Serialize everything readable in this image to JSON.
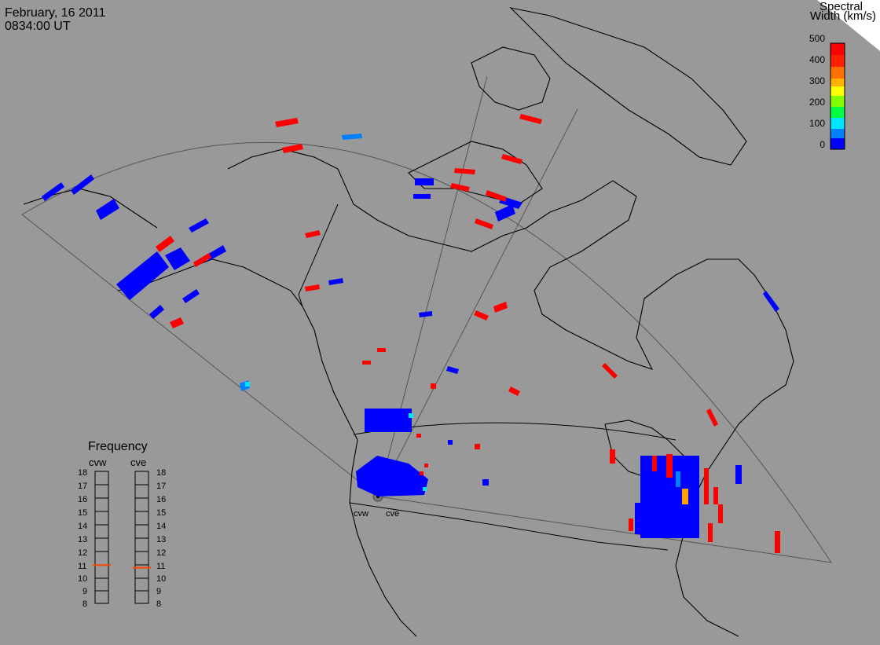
{
  "header": {
    "date": "February, 16 2011",
    "time": "0834:00 UT"
  },
  "scale": {
    "title_line1": "Spectral",
    "title_line2": "Width (km/s)",
    "ticks": [
      "500",
      "400",
      "300",
      "200",
      "100",
      "0"
    ],
    "colors": [
      "#0000ff",
      "#0080ff",
      "#00e5ff",
      "#00ff66",
      "#80ff00",
      "#ffff00",
      "#ffa000",
      "#ff4000",
      "#ff0000"
    ]
  },
  "frequency": {
    "title": "Frequency",
    "radars": [
      "cvw",
      "cve"
    ],
    "ticks": [
      "18",
      "17",
      "16",
      "15",
      "14",
      "13",
      "12",
      "11",
      "10",
      "9",
      "8"
    ],
    "cvw_freq_mhz": 10.9,
    "cve_freq_mhz": 10.7,
    "marker_color": "#ff4500"
  },
  "sites": {
    "west": "cvw",
    "east": "cve"
  },
  "colors": {
    "background": "#999999",
    "scatter_low": "#0000ff",
    "scatter_high": "#ff0000"
  }
}
